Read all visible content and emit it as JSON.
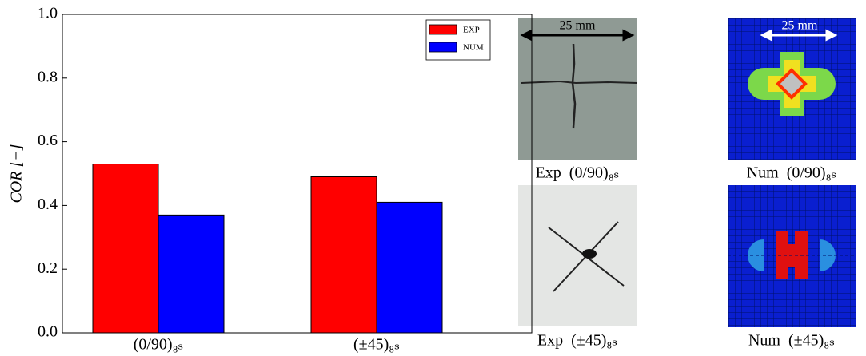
{
  "chart_data": {
    "type": "bar",
    "ylabel": "COR [−]",
    "categories": [
      "(0/90)₈ₛ",
      "(±45)₈ₛ"
    ],
    "series": [
      {
        "name": "EXP",
        "color": "#ff0000",
        "values": [
          0.53,
          0.49
        ]
      },
      {
        "name": "NUM",
        "color": "#0000ff",
        "values": [
          0.37,
          0.41
        ]
      }
    ],
    "ylim": [
      0,
      1
    ],
    "yticks": [
      {
        "value": 0,
        "label": "0.0"
      },
      0.2,
      0.4,
      0.6,
      0.8,
      {
        "value": 1,
        "label": "1.0"
      }
    ],
    "legend": "upper right"
  },
  "panels": [
    {
      "caption": "Exp  (0/90)₈ₛ",
      "scale": "25 mm"
    },
    {
      "caption": "Num  (0/90)₈ₛ",
      "scale": "25 mm"
    },
    {
      "caption": "Exp  (±45)₈ₛ"
    },
    {
      "caption": "Num  (±45)₈ₛ"
    }
  ]
}
